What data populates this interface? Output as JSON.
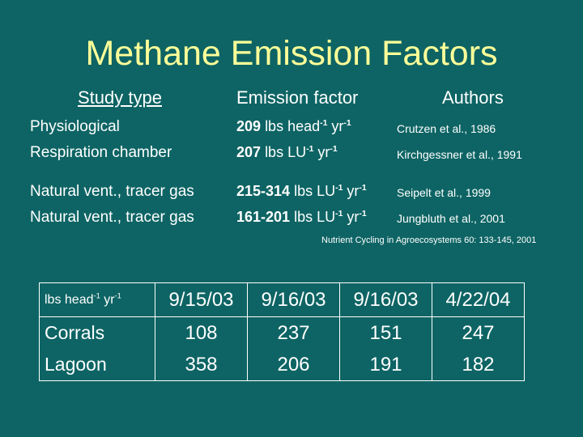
{
  "title": "Methane Emission Factors",
  "headers": {
    "study_type": "Study type",
    "emission_factor": "Emission factor",
    "authors": "Authors"
  },
  "rows": [
    {
      "study_type": "Physiological",
      "value": "209",
      "unit": "lbs head",
      "exp1": "-1",
      "unit2": " yr",
      "exp2": "-1",
      "author": "Crutzen et al., 1986"
    },
    {
      "study_type": "Respiration chamber",
      "value": "207",
      "unit": "lbs LU",
      "exp1": "-1",
      "unit2": " yr",
      "exp2": "-1",
      "author": "Kirchgessner et al., 1991"
    },
    {
      "study_type": "Natural vent., tracer gas",
      "value": "215-314",
      "unit": "lbs LU",
      "exp1": "-1",
      "unit2": " yr",
      "exp2": "-1",
      "author": "Seipelt et al., 1999"
    },
    {
      "study_type": "Natural vent., tracer gas",
      "value": "161-201",
      "unit": "lbs LU",
      "exp1": "-1",
      "unit2": " yr",
      "exp2": "-1",
      "author": "Jungbluth et al., 2001"
    }
  ],
  "citation": "Nutrient Cycling in Agroecosystems 60: 133-145, 2001",
  "table": {
    "unit": {
      "a": "lbs head",
      "exp1": "-1",
      "b": " yr",
      "exp2": "-1"
    },
    "dates": [
      "9/15/03",
      "9/16/03",
      "9/16/03",
      "4/22/04"
    ],
    "rows": [
      {
        "label": "Corrals",
        "values": [
          "108",
          "237",
          "151",
          "247"
        ]
      },
      {
        "label": "Lagoon",
        "values": [
          "358",
          "206",
          "191",
          "182"
        ]
      }
    ]
  }
}
